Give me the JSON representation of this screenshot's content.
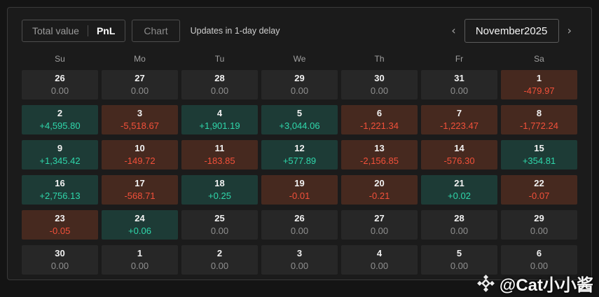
{
  "toolbar": {
    "total_value_label": "Total value",
    "pnl_label": "PnL",
    "chart_label": "Chart",
    "updates_note": "Updates in 1-day delay",
    "prev_icon": "‹",
    "next_icon": "›",
    "month_label": "November2025"
  },
  "weekdays": [
    "Su",
    "Mo",
    "Tu",
    "We",
    "Th",
    "Fr",
    "Sa"
  ],
  "calendar": {
    "days": [
      {
        "day": "26",
        "value": "0.00",
        "state": "zero"
      },
      {
        "day": "27",
        "value": "0.00",
        "state": "zero"
      },
      {
        "day": "28",
        "value": "0.00",
        "state": "zero"
      },
      {
        "day": "29",
        "value": "0.00",
        "state": "zero"
      },
      {
        "day": "30",
        "value": "0.00",
        "state": "zero"
      },
      {
        "day": "31",
        "value": "0.00",
        "state": "zero"
      },
      {
        "day": "1",
        "value": "-479.97",
        "state": "neg"
      },
      {
        "day": "2",
        "value": "+4,595.80",
        "state": "pos"
      },
      {
        "day": "3",
        "value": "-5,518.67",
        "state": "neg"
      },
      {
        "day": "4",
        "value": "+1,901.19",
        "state": "pos"
      },
      {
        "day": "5",
        "value": "+3,044.06",
        "state": "pos"
      },
      {
        "day": "6",
        "value": "-1,221.34",
        "state": "neg"
      },
      {
        "day": "7",
        "value": "-1,223.47",
        "state": "neg"
      },
      {
        "day": "8",
        "value": "-1,772.24",
        "state": "neg"
      },
      {
        "day": "9",
        "value": "+1,345.42",
        "state": "pos"
      },
      {
        "day": "10",
        "value": "-149.72",
        "state": "neg"
      },
      {
        "day": "11",
        "value": "-183.85",
        "state": "neg"
      },
      {
        "day": "12",
        "value": "+577.89",
        "state": "pos"
      },
      {
        "day": "13",
        "value": "-2,156.85",
        "state": "neg"
      },
      {
        "day": "14",
        "value": "-576.30",
        "state": "neg"
      },
      {
        "day": "15",
        "value": "+354.81",
        "state": "pos"
      },
      {
        "day": "16",
        "value": "+2,756.13",
        "state": "pos"
      },
      {
        "day": "17",
        "value": "-568.71",
        "state": "neg"
      },
      {
        "day": "18",
        "value": "+0.25",
        "state": "pos"
      },
      {
        "day": "19",
        "value": "-0.01",
        "state": "neg"
      },
      {
        "day": "20",
        "value": "-0.21",
        "state": "neg"
      },
      {
        "day": "21",
        "value": "+0.02",
        "state": "pos"
      },
      {
        "day": "22",
        "value": "-0.07",
        "state": "neg"
      },
      {
        "day": "23",
        "value": "-0.05",
        "state": "neg"
      },
      {
        "day": "24",
        "value": "+0.06",
        "state": "pos"
      },
      {
        "day": "25",
        "value": "0.00",
        "state": "zero"
      },
      {
        "day": "26",
        "value": "0.00",
        "state": "zero"
      },
      {
        "day": "27",
        "value": "0.00",
        "state": "zero"
      },
      {
        "day": "28",
        "value": "0.00",
        "state": "zero"
      },
      {
        "day": "29",
        "value": "0.00",
        "state": "zero"
      },
      {
        "day": "30",
        "value": "0.00",
        "state": "zero"
      },
      {
        "day": "1",
        "value": "0.00",
        "state": "zero"
      },
      {
        "day": "2",
        "value": "0.00",
        "state": "zero"
      },
      {
        "day": "3",
        "value": "0.00",
        "state": "zero"
      },
      {
        "day": "4",
        "value": "0.00",
        "state": "zero"
      },
      {
        "day": "5",
        "value": "0.00",
        "state": "zero"
      },
      {
        "day": "6",
        "value": "0.00",
        "state": "zero"
      }
    ]
  },
  "watermark": {
    "icon": "binance-diamond-icon",
    "handle": "@Cat小小酱"
  },
  "colors": {
    "positive_bg": "#1d3b36",
    "positive_text": "#2fd7ab",
    "negative_bg": "#46291f",
    "negative_text": "#f2503a",
    "neutral_bg": "#272727",
    "panel_bg": "#1b1b1b",
    "page_bg": "#141414"
  }
}
